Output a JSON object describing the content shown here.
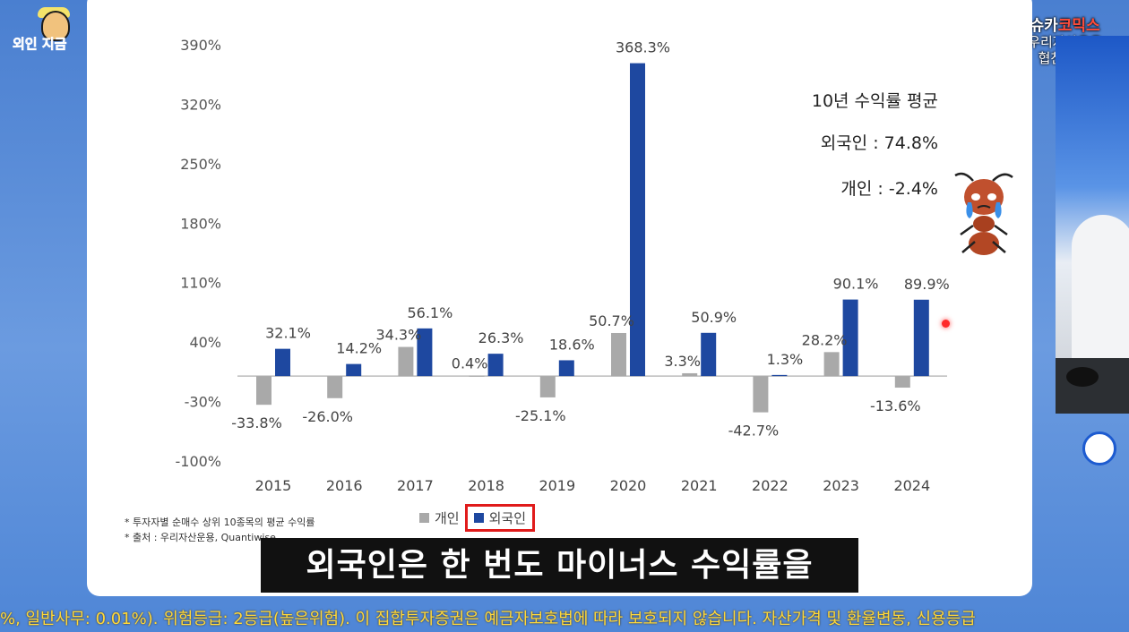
{
  "channel": {
    "logo_text": "외인 지금"
  },
  "sponsor": {
    "brand_left": "슈카",
    "brand_right": "코믹스",
    "line1": "우리자산운용",
    "line2": "협찬 광고"
  },
  "summary": {
    "title": "10년 수익률 평균",
    "foreign": "외국인 : 74.8%",
    "individual": "개인 : -2.4%"
  },
  "footnotes": [
    "* 투자자별 순매수 상위 10종목의 평균 수익률",
    "* 출처 : 우리자산운용, Quantiwise"
  ],
  "legend": {
    "individual": "개인",
    "foreign": "외국인"
  },
  "subtitle": "외국인은 한 번도 마이너스 수익률을",
  "ticker": "%, 일반사무: 0.01%). 위험등급: 2등급(높은위험). 이 집합투자증권은 예금자보호법에 따라 보호되지 않습니다. 자산가격 및 환율변동, 신용등급",
  "colors": {
    "individual": "#a9a9a9",
    "foreign": "#1e48a0",
    "highlight": "#e01b1b"
  },
  "chart_data": {
    "type": "bar",
    "categories": [
      "2015",
      "2016",
      "2017",
      "2018",
      "2019",
      "2020",
      "2021",
      "2022",
      "2023",
      "2024"
    ],
    "series": [
      {
        "name": "개인",
        "values": [
          -33.8,
          -26.0,
          34.3,
          0.4,
          -25.1,
          50.7,
          3.3,
          -42.7,
          28.2,
          -13.6
        ]
      },
      {
        "name": "외국인",
        "values": [
          32.1,
          14.2,
          56.1,
          26.3,
          18.6,
          368.3,
          50.9,
          1.3,
          90.1,
          89.9
        ]
      }
    ],
    "y_ticks": [
      "390%",
      "320%",
      "250%",
      "180%",
      "110%",
      "40%",
      "-30%",
      "-100%"
    ],
    "ylim": [
      -100,
      390
    ],
    "grid": false,
    "legend_position": "bottom"
  }
}
